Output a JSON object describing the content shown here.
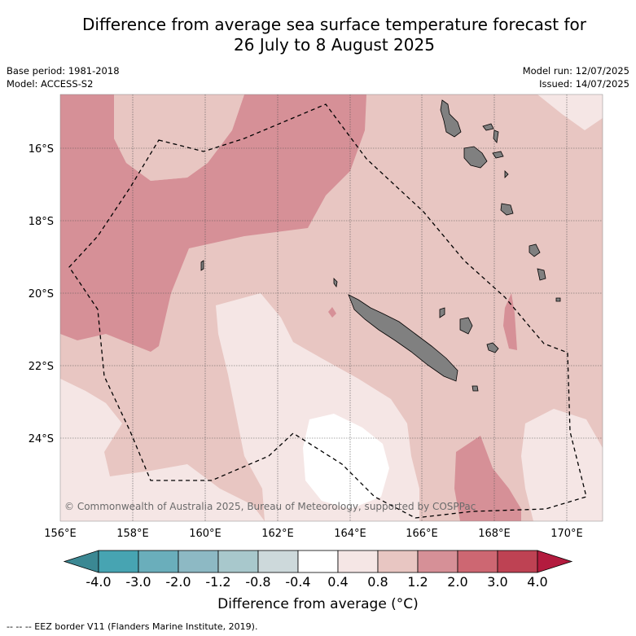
{
  "header": {
    "title_line1": "Difference from average sea surface temperature forecast for",
    "title_line2": "26 July to 8 August 2025",
    "base_period": "Base period: 1981-2018",
    "model": "Model: ACCESS-S2",
    "model_run": "Model run: 12/07/2025",
    "issued": "Issued: 14/07/2025"
  },
  "map": {
    "x_ticks": [
      "156°E",
      "158°E",
      "160°E",
      "162°E",
      "164°E",
      "166°E",
      "168°E",
      "170°E"
    ],
    "y_ticks": [
      "16°S",
      "18°S",
      "20°S",
      "22°S",
      "24°S"
    ],
    "copyright": "© Commonwealth of Australia 2025, Bureau of Meteorology, supported by COSPPac",
    "land_color": "#808080",
    "eez_style": "dashed black"
  },
  "colorbar": {
    "tick_labels": [
      "-4.0",
      "-3.0",
      "-2.0",
      "-1.2",
      "-0.8",
      "-0.4",
      "0.4",
      "0.8",
      "1.2",
      "2.0",
      "3.0",
      "4.0"
    ],
    "colors": [
      "#47a4b2",
      "#6aaebb",
      "#8db9c4",
      "#a8c8cc",
      "#cdd9db",
      "#ffffff",
      "#f5e6e5",
      "#e8c6c2",
      "#d69097",
      "#cd6772",
      "#be4253"
    ],
    "low_extend_color": "#3b8893",
    "high_extend_color": "#b31b3e",
    "label": "Difference from average (°C)"
  },
  "footnote": "-- -- -- EEZ border V11 (Flanders Marine Institute, 2019)."
}
